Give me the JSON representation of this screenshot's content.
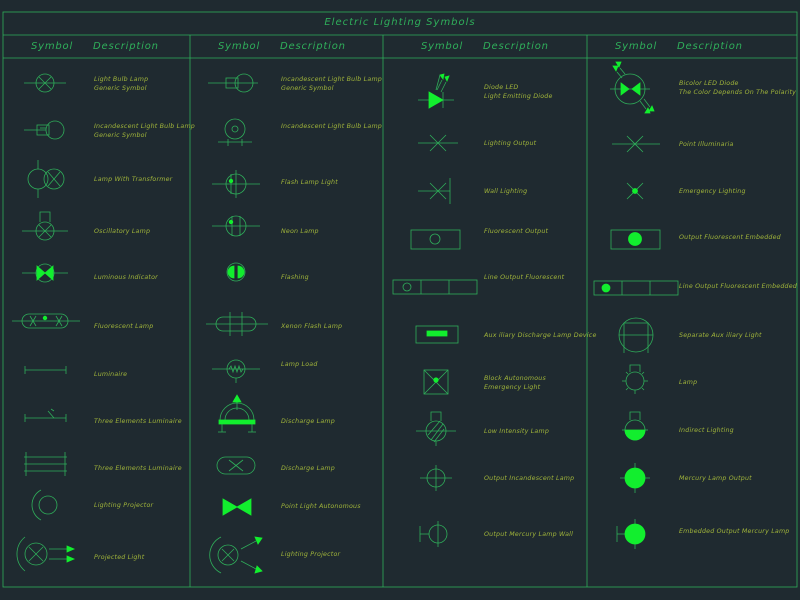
{
  "title": "Electric Lighting Symbols",
  "headers": {
    "symbol": "Symbol",
    "description": "Description"
  },
  "col1": [
    "Light Bulb Lamp\nGeneric Symbol",
    "Incandescent Light Bulb Lamp\nGeneric Symbol",
    "Lamp With Transformer",
    "Oscillatory Lamp",
    "Luminous Indicator",
    "Fluorescent Lamp",
    "Luminaire",
    "Three Elements Luminaire",
    "Three Elements Luminaire",
    "Lighting Projector",
    "Projected Light"
  ],
  "col2": [
    "Incandescent Light Bulb Lamp\nGeneric Symbol",
    "Incandescent Light Bulb Lamp",
    "Flash Lamp Light",
    "Neon Lamp",
    "Flashing",
    "Xenon Flash Lamp",
    "Lamp Load",
    "Discharge Lamp",
    "Discharge Lamp",
    "Point Light Autonomous",
    "Lighting Projector"
  ],
  "col3": [
    "Diode LED\nLight Emitting Diode",
    "Lighting Output",
    "Wall Lighting",
    "Fluorescent Output",
    "Line Output Fluorescent",
    "Aux iliary Discharge Lamp Device",
    "Block Autonomous\nEmergency Light",
    "Low Intensity Lamp",
    "Output Incandescent Lamp",
    "Output Mercury Lamp Wall"
  ],
  "col4": [
    "Bicolor LED Diode\nThe Color Depends On The Polarity",
    "Point Illuminaria",
    "Emergency Lighting",
    "Output Fluorescent Embedded",
    "Line Output Fluorescent Embedded",
    "Separate Aux iliary Light",
    "Lamp",
    "Indirect Lighting",
    "Mercury Lamp Output",
    "Embedded Output Mercury Lamp"
  ],
  "colors": {
    "background": "#1f2a30",
    "frame": "#2fae5a",
    "text": "#9fb33a",
    "symbol": "#2fae5a",
    "fill": "#12ee2e"
  }
}
